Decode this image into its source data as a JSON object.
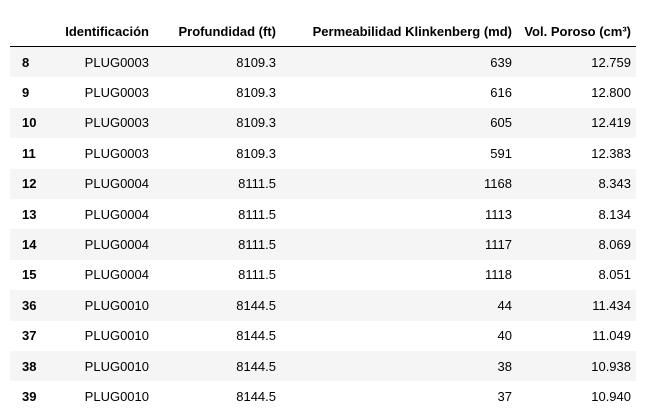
{
  "table": {
    "columns": [
      "",
      "Identificación",
      "Profundidad (ft)",
      "Permeabilidad Klinkenberg (md)",
      "Vol. Poroso (cm³)"
    ],
    "rows": [
      {
        "index": "8",
        "id": "PLUG0003",
        "depth": "8109.3",
        "perm": "639",
        "vol": "12.759"
      },
      {
        "index": "9",
        "id": "PLUG0003",
        "depth": "8109.3",
        "perm": "616",
        "vol": "12.800"
      },
      {
        "index": "10",
        "id": "PLUG0003",
        "depth": "8109.3",
        "perm": "605",
        "vol": "12.419"
      },
      {
        "index": "11",
        "id": "PLUG0003",
        "depth": "8109.3",
        "perm": "591",
        "vol": "12.383"
      },
      {
        "index": "12",
        "id": "PLUG0004",
        "depth": "8111.5",
        "perm": "1168",
        "vol": "8.343"
      },
      {
        "index": "13",
        "id": "PLUG0004",
        "depth": "8111.5",
        "perm": "1113",
        "vol": "8.134"
      },
      {
        "index": "14",
        "id": "PLUG0004",
        "depth": "8111.5",
        "perm": "1117",
        "vol": "8.069"
      },
      {
        "index": "15",
        "id": "PLUG0004",
        "depth": "8111.5",
        "perm": "1118",
        "vol": "8.051"
      },
      {
        "index": "36",
        "id": "PLUG0010",
        "depth": "8144.5",
        "perm": "44",
        "vol": "11.434"
      },
      {
        "index": "37",
        "id": "PLUG0010",
        "depth": "8144.5",
        "perm": "40",
        "vol": "11.049"
      },
      {
        "index": "38",
        "id": "PLUG0010",
        "depth": "8144.5",
        "perm": "38",
        "vol": "10.938"
      },
      {
        "index": "39",
        "id": "PLUG0010",
        "depth": "8144.5",
        "perm": "37",
        "vol": "10.940"
      }
    ]
  }
}
